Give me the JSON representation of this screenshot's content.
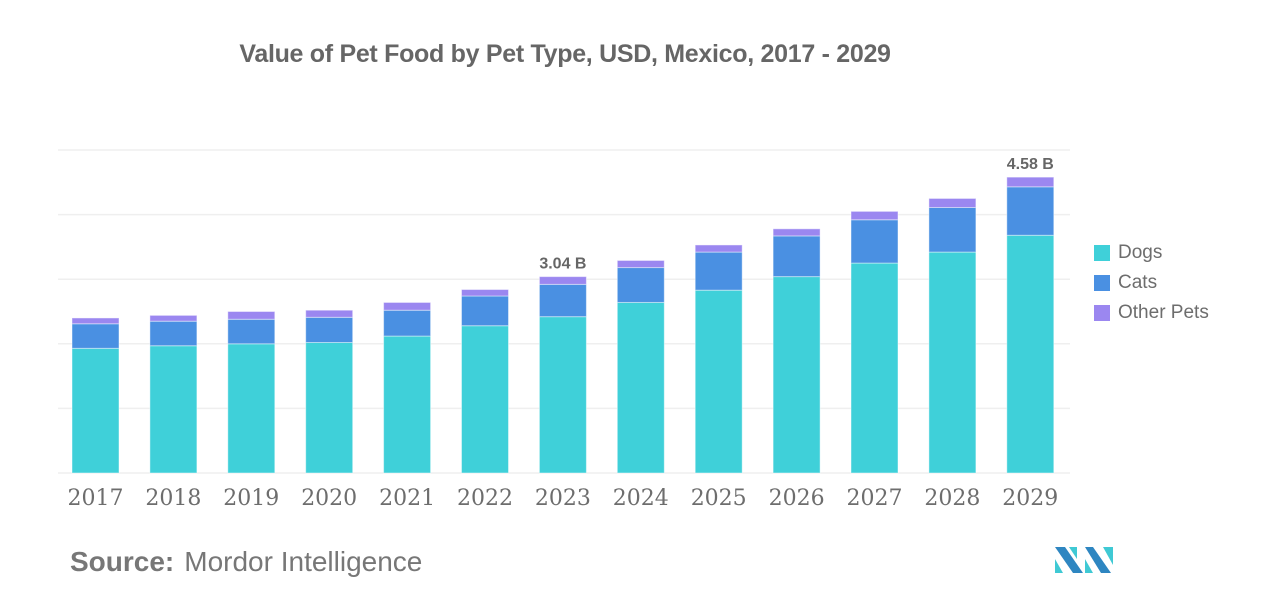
{
  "chart_data": {
    "type": "bar",
    "stacked": true,
    "title": "Value of Pet Food by Pet Type, USD, Mexico, 2017 - 2029",
    "xlabel": "",
    "ylabel": "",
    "unit": "USD billion",
    "ylim": [
      0,
      5
    ],
    "yticks": [
      0,
      1,
      2,
      3,
      4,
      5
    ],
    "ytick_labels_visible": false,
    "grid": true,
    "legend_position": "right",
    "categories": [
      "2017",
      "2018",
      "2019",
      "2020",
      "2021",
      "2022",
      "2023",
      "2024",
      "2025",
      "2026",
      "2027",
      "2028",
      "2029"
    ],
    "series": [
      {
        "name": "Dogs",
        "color": "#3FD0D9",
        "values": [
          1.93,
          1.97,
          2.0,
          2.02,
          2.12,
          2.28,
          2.42,
          2.64,
          2.83,
          3.04,
          3.25,
          3.42,
          3.68
        ]
      },
      {
        "name": "Cats",
        "color": "#4A90E2",
        "values": [
          0.38,
          0.38,
          0.38,
          0.39,
          0.4,
          0.46,
          0.5,
          0.54,
          0.59,
          0.63,
          0.67,
          0.69,
          0.75
        ]
      },
      {
        "name": "Other Pets",
        "color": "#9B87F0",
        "values": [
          0.09,
          0.09,
          0.12,
          0.11,
          0.12,
          0.1,
          0.12,
          0.11,
          0.11,
          0.11,
          0.13,
          0.14,
          0.15
        ]
      }
    ],
    "annotations": [
      {
        "category": "2023",
        "text": "3.04 B"
      },
      {
        "category": "2029",
        "text": "4.58 B"
      }
    ]
  },
  "source": {
    "label": "Source:",
    "value": "Mordor Intelligence"
  },
  "logo": {
    "name": "mordor-intelligence-logo",
    "colors": [
      "#2E86C1",
      "#3FC9D4"
    ]
  }
}
